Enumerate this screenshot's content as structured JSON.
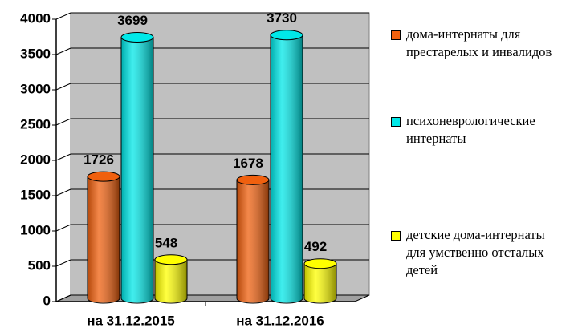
{
  "chart_data": {
    "type": "bar",
    "categories": [
      "на 31.12.2015",
      "на 31.12.2016"
    ],
    "series": [
      {
        "name": "дома-интернаты для престарелых и инвалидов",
        "color": "#f0600e",
        "values": [
          1726,
          1678
        ]
      },
      {
        "name": "психоневрологические интернаты",
        "color": "#00e8e8",
        "values": [
          3699,
          3730
        ]
      },
      {
        "name": "детские дома-интернаты для умственно отсталых детей",
        "color": "#ffff00",
        "values": [
          548,
          492
        ]
      }
    ],
    "ylim": [
      0,
      4000
    ],
    "yticks": [
      0,
      500,
      1000,
      1500,
      2000,
      2500,
      3000,
      3500,
      4000
    ],
    "grid": true,
    "legend": "right"
  }
}
